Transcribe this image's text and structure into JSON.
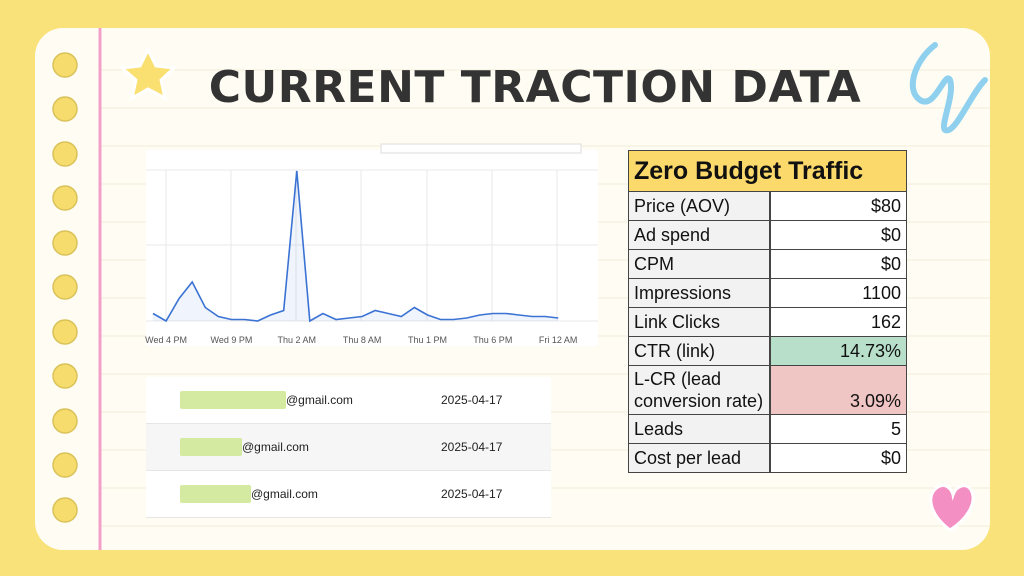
{
  "title": "CURRENT TRACTION DATA",
  "chart_data": {
    "type": "line",
    "color": "#3b73d4",
    "categories": [
      null,
      "Wed 4 PM",
      null,
      null,
      null,
      null,
      "Wed 9 PM",
      null,
      null,
      null,
      null,
      "Thu 2 AM",
      null,
      null,
      null,
      null,
      "Thu 8 AM",
      null,
      null,
      null,
      null,
      "Thu 1 PM",
      null,
      null,
      null,
      null,
      "Thu 6 PM",
      null,
      null,
      null,
      null,
      "Fri 12 AM"
    ],
    "values": [
      5,
      0,
      15,
      26,
      9,
      3,
      1,
      1,
      0,
      4,
      7,
      100,
      0,
      5,
      1,
      2,
      3,
      7,
      5,
      3,
      9,
      4,
      1,
      1,
      2,
      4,
      5,
      5,
      4,
      3,
      3,
      2
    ],
    "ylim": [
      0,
      100
    ]
  },
  "table": {
    "header": "Zero Budget Traffic",
    "rows": [
      [
        "Price (AOV)",
        "$80"
      ],
      [
        "Ad spend",
        "$0"
      ],
      [
        "CPM",
        "$0"
      ],
      [
        "Impressions",
        "1100"
      ],
      [
        "Link Clicks",
        "162"
      ],
      [
        "CTR (link)",
        "14.73%"
      ],
      [
        "L-CR (lead conversion rate)",
        "3.09%"
      ],
      [
        "Leads",
        "5"
      ],
      [
        "Cost per lead",
        "$0"
      ]
    ]
  },
  "emails": [
    [
      "@gmail.com",
      "2025-04-17"
    ],
    [
      "@gmail.com",
      "2025-04-17"
    ],
    [
      "@gmail.com",
      "2025-04-17"
    ]
  ]
}
